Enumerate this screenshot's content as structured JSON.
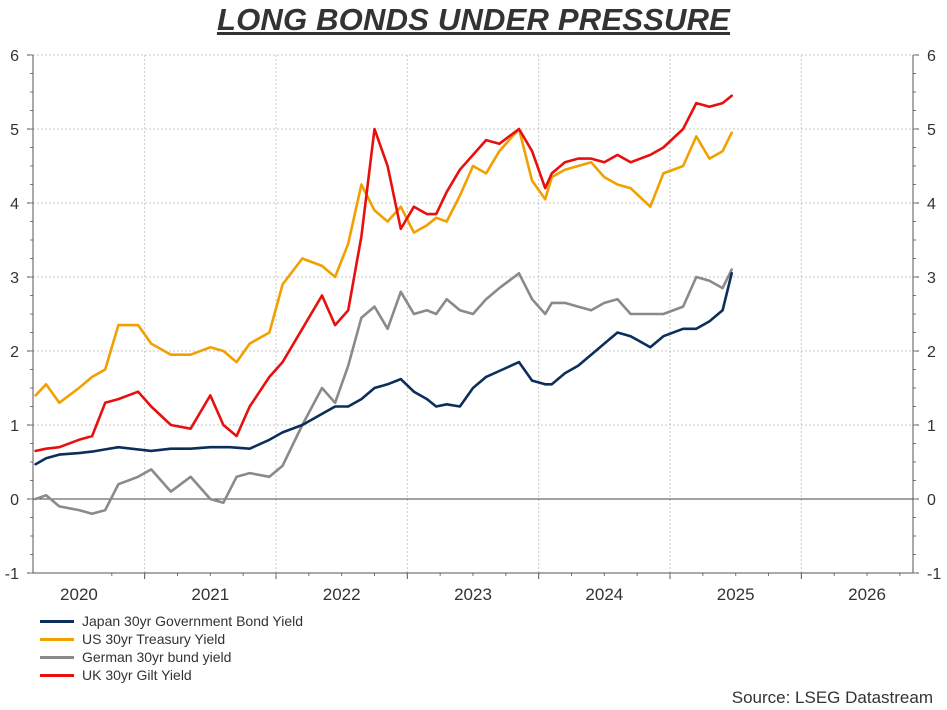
{
  "chart_data": {
    "type": "line",
    "title": "LONG BONDS UNDER PRESSURE",
    "xlabel": "",
    "ylabel": "",
    "xlim": [
      2019.65,
      2026.35
    ],
    "ylim": [
      -1,
      6
    ],
    "yticks": [
      -1,
      0,
      1,
      2,
      3,
      4,
      5,
      6
    ],
    "xtick_labels": [
      "2020",
      "2021",
      "2022",
      "2023",
      "2024",
      "2025",
      "2026"
    ],
    "xtick_positions": [
      2020.0,
      2021.0,
      2022.0,
      2023.0,
      2024.0,
      2025.0,
      2026.0
    ],
    "grid": true,
    "legend_position": "bottom-left",
    "series": [
      {
        "name": "Japan 30yr Government Bond Yield",
        "color": "#0b2f5a",
        "x": [
          2019.67,
          2019.75,
          2019.85,
          2020.0,
          2020.1,
          2020.2,
          2020.3,
          2020.45,
          2020.55,
          2020.7,
          2020.85,
          2021.0,
          2021.15,
          2021.3,
          2021.45,
          2021.55,
          2021.7,
          2021.85,
          2021.95,
          2022.05,
          2022.15,
          2022.25,
          2022.35,
          2022.45,
          2022.55,
          2022.65,
          2022.72,
          2022.8,
          2022.9,
          2023.0,
          2023.1,
          2023.2,
          2023.35,
          2023.45,
          2023.55,
          2023.6,
          2023.7,
          2023.8,
          2023.9,
          2024.0,
          2024.1,
          2024.2,
          2024.35,
          2024.45,
          2024.6,
          2024.7,
          2024.8,
          2024.9,
          2024.97
        ],
        "y": [
          0.47,
          0.55,
          0.6,
          0.62,
          0.64,
          0.67,
          0.7,
          0.67,
          0.65,
          0.68,
          0.68,
          0.7,
          0.7,
          0.68,
          0.8,
          0.9,
          1.0,
          1.15,
          1.25,
          1.25,
          1.35,
          1.5,
          1.55,
          1.62,
          1.45,
          1.35,
          1.25,
          1.28,
          1.25,
          1.5,
          1.65,
          1.73,
          1.85,
          1.6,
          1.55,
          1.55,
          1.7,
          1.8,
          1.95,
          2.1,
          2.25,
          2.2,
          2.05,
          2.2,
          2.3,
          2.3,
          2.4,
          2.55,
          3.05
        ]
      },
      {
        "name": "US 30yr Treasury Yield",
        "color": "#f2a000",
        "x": [
          2019.67,
          2019.75,
          2019.85,
          2020.0,
          2020.1,
          2020.2,
          2020.3,
          2020.45,
          2020.55,
          2020.7,
          2020.85,
          2021.0,
          2021.1,
          2021.2,
          2021.3,
          2021.45,
          2021.55,
          2021.7,
          2021.85,
          2021.95,
          2022.05,
          2022.15,
          2022.25,
          2022.35,
          2022.45,
          2022.55,
          2022.65,
          2022.72,
          2022.8,
          2022.9,
          2023.0,
          2023.1,
          2023.2,
          2023.35,
          2023.45,
          2023.55,
          2023.6,
          2023.7,
          2023.8,
          2023.9,
          2024.0,
          2024.1,
          2024.2,
          2024.35,
          2024.45,
          2024.6,
          2024.7,
          2024.8,
          2024.9,
          2024.97
        ],
        "y": [
          1.4,
          1.55,
          1.3,
          1.5,
          1.65,
          1.75,
          2.35,
          2.35,
          2.1,
          1.95,
          1.95,
          2.05,
          2.0,
          1.85,
          2.1,
          2.25,
          2.9,
          3.25,
          3.15,
          3.0,
          3.45,
          4.25,
          3.9,
          3.75,
          3.95,
          3.6,
          3.7,
          3.8,
          3.75,
          4.1,
          4.5,
          4.4,
          4.7,
          5.0,
          4.3,
          4.05,
          4.35,
          4.45,
          4.5,
          4.55,
          4.35,
          4.25,
          4.2,
          3.95,
          4.4,
          4.5,
          4.9,
          4.6,
          4.7,
          4.95
        ]
      },
      {
        "name": "German 30yr bund yield",
        "color": "#8a8a8a",
        "x": [
          2019.67,
          2019.75,
          2019.85,
          2020.0,
          2020.1,
          2020.2,
          2020.3,
          2020.45,
          2020.55,
          2020.7,
          2020.85,
          2021.0,
          2021.1,
          2021.2,
          2021.3,
          2021.45,
          2021.55,
          2021.7,
          2021.85,
          2021.95,
          2022.05,
          2022.15,
          2022.25,
          2022.35,
          2022.45,
          2022.55,
          2022.65,
          2022.72,
          2022.8,
          2022.9,
          2023.0,
          2023.1,
          2023.2,
          2023.35,
          2023.45,
          2023.55,
          2023.6,
          2023.7,
          2023.8,
          2023.9,
          2024.0,
          2024.1,
          2024.2,
          2024.35,
          2024.45,
          2024.6,
          2024.7,
          2024.8,
          2024.9,
          2024.97
        ],
        "y": [
          0.0,
          0.05,
          -0.1,
          -0.15,
          -0.2,
          -0.15,
          0.2,
          0.3,
          0.4,
          0.1,
          0.3,
          0.0,
          -0.05,
          0.3,
          0.35,
          0.3,
          0.45,
          1.0,
          1.5,
          1.3,
          1.8,
          2.45,
          2.6,
          2.3,
          2.8,
          2.5,
          2.55,
          2.5,
          2.7,
          2.55,
          2.5,
          2.7,
          2.85,
          3.05,
          2.7,
          2.5,
          2.65,
          2.65,
          2.6,
          2.55,
          2.65,
          2.7,
          2.5,
          2.5,
          2.5,
          2.6,
          3.0,
          2.95,
          2.85,
          3.1
        ]
      },
      {
        "name": "UK 30yr Gilt Yield",
        "color": "#e8100f",
        "x": [
          2019.67,
          2019.75,
          2019.85,
          2020.0,
          2020.1,
          2020.2,
          2020.3,
          2020.45,
          2020.55,
          2020.7,
          2020.85,
          2021.0,
          2021.1,
          2021.2,
          2021.3,
          2021.45,
          2021.55,
          2021.7,
          2021.85,
          2021.95,
          2022.05,
          2022.15,
          2022.25,
          2022.35,
          2022.45,
          2022.55,
          2022.65,
          2022.72,
          2022.8,
          2022.9,
          2023.0,
          2023.1,
          2023.2,
          2023.35,
          2023.45,
          2023.55,
          2023.6,
          2023.7,
          2023.8,
          2023.9,
          2024.0,
          2024.1,
          2024.2,
          2024.35,
          2024.45,
          2024.6,
          2024.7,
          2024.8,
          2024.9,
          2024.97
        ],
        "y": [
          0.65,
          0.68,
          0.7,
          0.8,
          0.85,
          1.3,
          1.35,
          1.45,
          1.25,
          1.0,
          0.95,
          1.4,
          1.0,
          0.85,
          1.25,
          1.65,
          1.85,
          2.3,
          2.75,
          2.35,
          2.55,
          3.55,
          5.0,
          4.5,
          3.65,
          3.95,
          3.85,
          3.85,
          4.15,
          4.45,
          4.65,
          4.85,
          4.8,
          5.0,
          4.7,
          4.2,
          4.4,
          4.55,
          4.6,
          4.6,
          4.55,
          4.65,
          4.55,
          4.65,
          4.75,
          5.0,
          5.35,
          5.3,
          5.35,
          5.45
        ]
      }
    ]
  },
  "legend": {
    "items": [
      {
        "label": "Japan 30yr Government Bond Yield",
        "color": "#0b2f5a"
      },
      {
        "label": "US 30yr Treasury Yield",
        "color": "#f2a000"
      },
      {
        "label": "German 30yr bund yield",
        "color": "#8a8a8a"
      },
      {
        "label": "UK 30yr Gilt Yield",
        "color": "#e8100f"
      }
    ]
  },
  "source": "Source: LSEG Datastream"
}
